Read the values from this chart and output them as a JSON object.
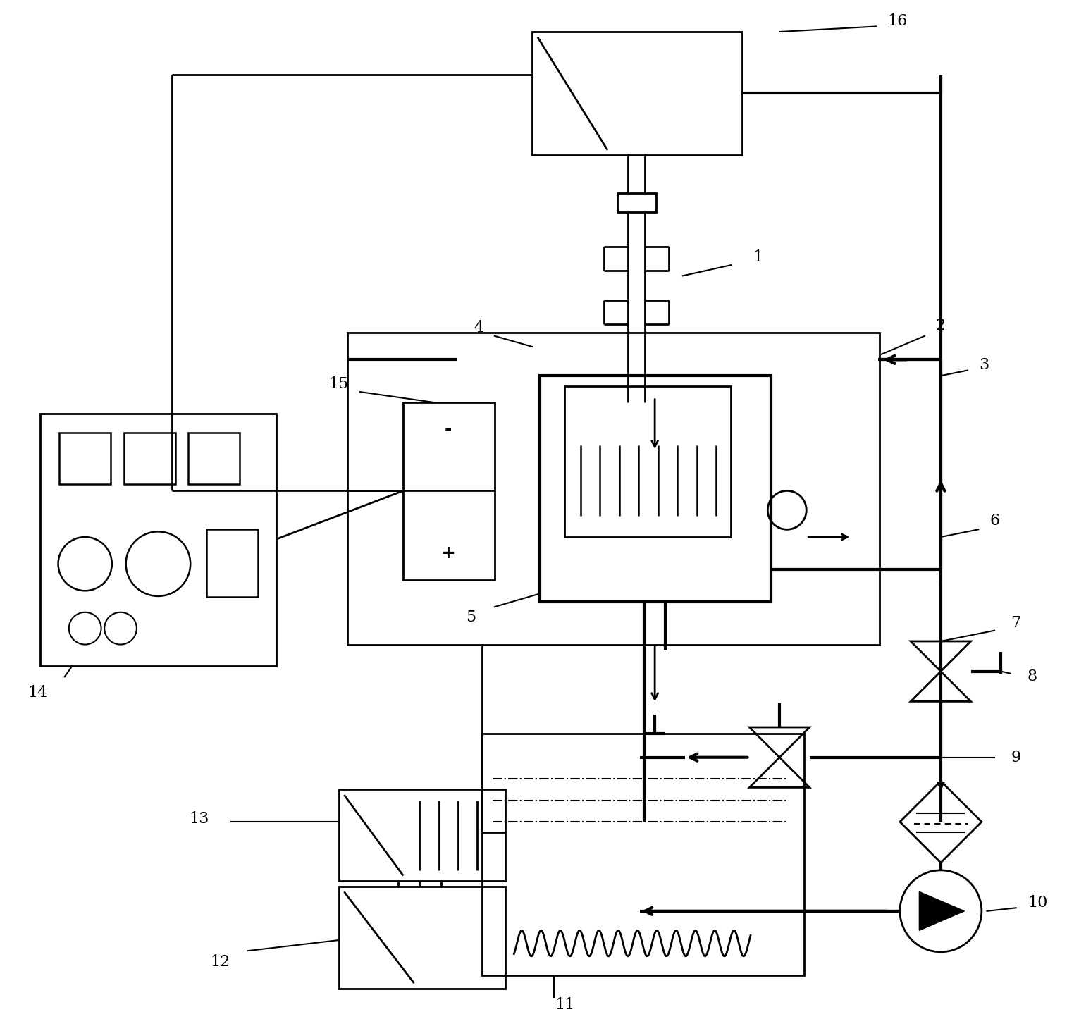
{
  "bg_color": "#ffffff",
  "lw": 2.0,
  "lw_thick": 3.0,
  "fig_width": 15.41,
  "fig_height": 14.63
}
